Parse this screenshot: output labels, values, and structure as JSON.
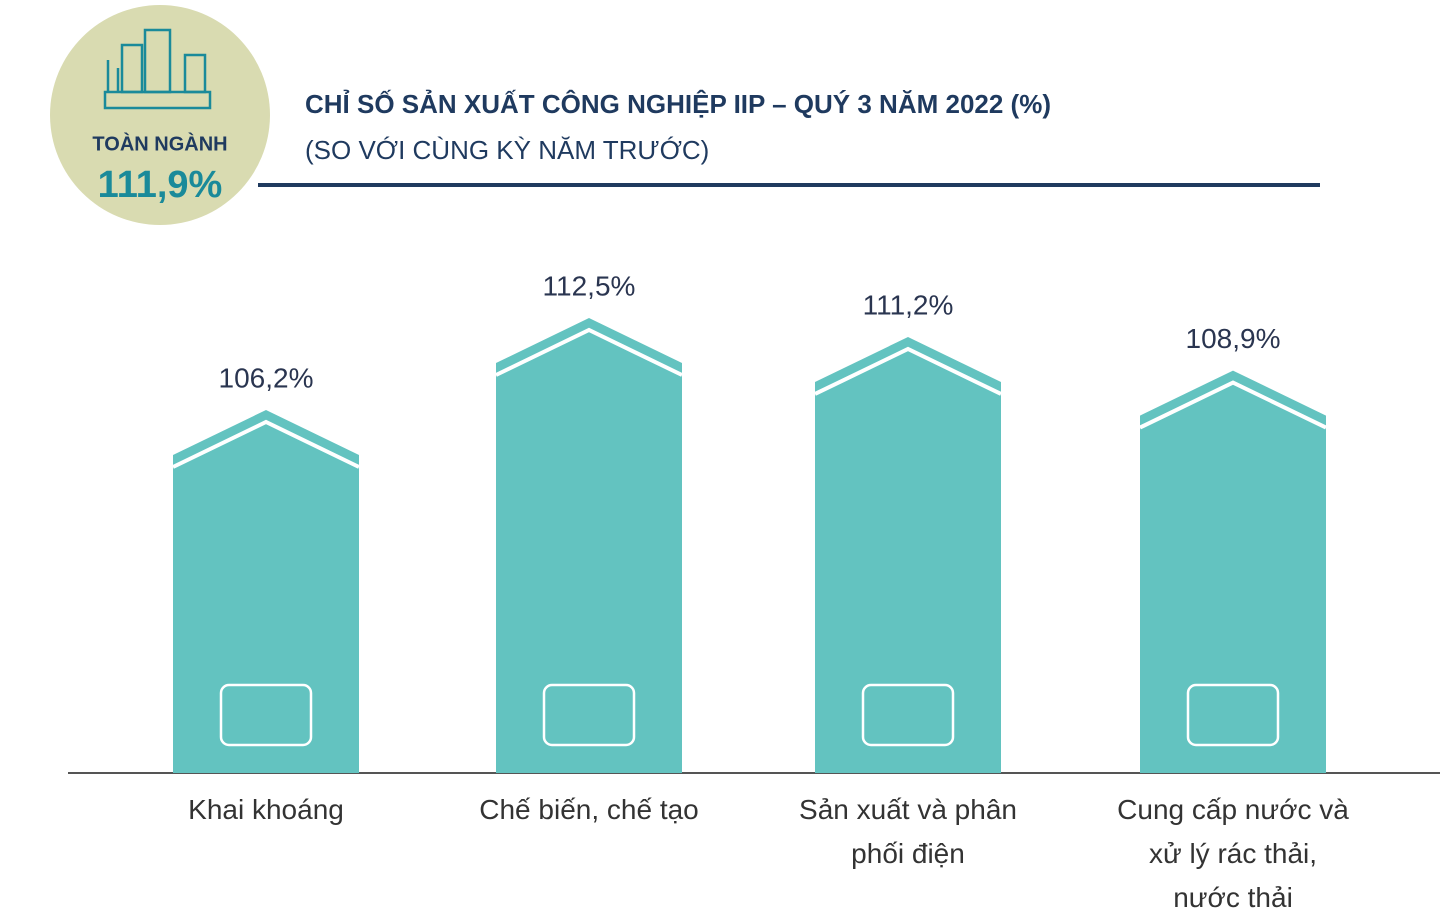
{
  "chart_data": {
    "type": "bar",
    "title": "CHỈ SỐ SẢN XUẤT CÔNG NGHIỆP IIP – QUÝ 3 NĂM 2022 (%)",
    "subtitle": "(SO VỚI CÙNG KỲ NĂM TRƯỚC)",
    "overall": {
      "label": "TOÀN NGÀNH",
      "value": 111.9,
      "value_label": "111,9%"
    },
    "categories": [
      "Khai khoáng",
      "Chế biến, chế tạo",
      "Sản xuất và phân phối điện",
      "Cung cấp nước và xử lý rác thải, nước thải"
    ],
    "values": [
      106.2,
      112.5,
      111.2,
      108.9
    ],
    "value_labels": [
      "106,2%",
      "112,5%",
      "111,2%",
      "108,9%"
    ],
    "color": "#63c3c0"
  }
}
